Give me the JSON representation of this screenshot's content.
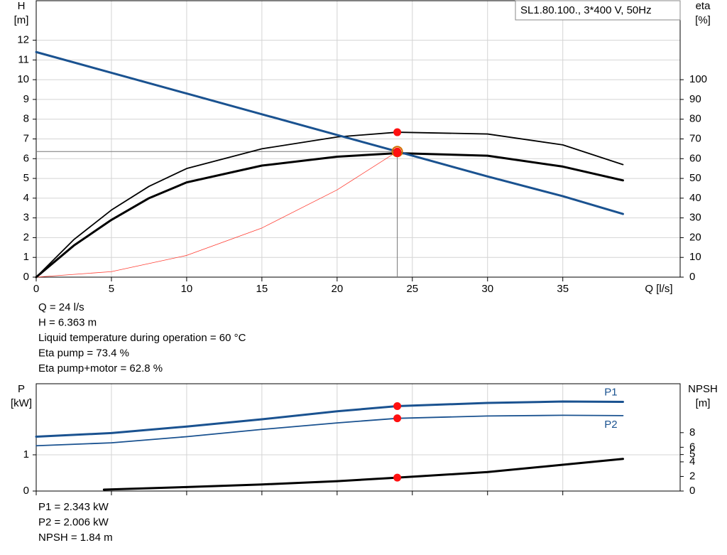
{
  "chart_data": [
    {
      "type": "line",
      "title": "SL1.80.100., 3*400 V, 50Hz",
      "xlabel": "Q [l/s]",
      "ylabel": "H",
      "yunit": "[m]",
      "y2label": "eta",
      "y2unit": "[%]",
      "xlim": [
        0,
        42.8
      ],
      "xticks": [
        0,
        5,
        10,
        15,
        20,
        25,
        30,
        35
      ],
      "ylim": [
        0,
        14
      ],
      "yticks": [
        0,
        1,
        2,
        3,
        4,
        5,
        6,
        7,
        8,
        9,
        10,
        11,
        12
      ],
      "y2lim": [
        0,
        140
      ],
      "y2ticks": [
        0,
        10,
        20,
        30,
        40,
        50,
        60,
        70,
        80,
        90,
        100
      ],
      "grid": true,
      "series": [
        {
          "color": "#ff3b30",
          "width": 0.8,
          "axis": "y",
          "x": [
            0,
            5,
            10,
            15,
            20,
            24
          ],
          "values": [
            0,
            0.28,
            1.1,
            2.49,
            4.42,
            6.363
          ]
        },
        {
          "color": "#000000",
          "width": 1.8,
          "axis": "y2",
          "x": [
            0,
            2.5,
            5,
            7.5,
            10,
            15,
            20,
            24,
            30,
            35,
            39
          ],
          "values": [
            0,
            19,
            34,
            46,
            55,
            65,
            71,
            73.4,
            72.5,
            67,
            57
          ]
        },
        {
          "color": "#000000",
          "width": 3,
          "axis": "y2",
          "x": [
            0,
            2.5,
            5,
            7.5,
            10,
            15,
            20,
            24,
            30,
            35,
            39
          ],
          "values": [
            0,
            16,
            29,
            40,
            48,
            56.5,
            61,
            62.8,
            61.5,
            56,
            49
          ]
        },
        {
          "color": "#1a5290",
          "width": 3,
          "axis": "y",
          "x": [
            0,
            5,
            10,
            15,
            20,
            24,
            30,
            35,
            39
          ],
          "values": [
            11.4,
            10.35,
            9.3,
            8.25,
            7.2,
            6.363,
            5.1,
            4.1,
            3.2
          ]
        }
      ],
      "markers": [
        {
          "x": 24,
          "y": 73.4,
          "axis": "y2",
          "color": "#ff1010"
        },
        {
          "x": 24,
          "y": 6.363,
          "axis": "y",
          "color": "#ff1010",
          "ring": "#d07000",
          "guide": true
        },
        {
          "x": 24,
          "y": 62.8,
          "axis": "y2",
          "color": "#ff1010"
        }
      ],
      "readout": [
        "Q = 24 l/s",
        "H = 6.363 m",
        "Liquid temperature during operation = 60 °C",
        "Eta pump = 73.4 %",
        "Eta pump+motor = 62.8 %"
      ]
    },
    {
      "type": "line",
      "ylabel": "P",
      "yunit": "[kW]",
      "y2label": "NPSH",
      "y2unit": "[m]",
      "xlim": [
        0,
        42.8
      ],
      "xticks": [
        0,
        5,
        10,
        15,
        20,
        25,
        30,
        35
      ],
      "ylim": [
        0,
        2.96
      ],
      "yticks": [
        0,
        1
      ],
      "y2lim": [
        0,
        14.7
      ],
      "y2ticks": [
        0,
        2,
        4,
        5,
        6,
        8
      ],
      "grid": true,
      "series": [
        {
          "name": "P1",
          "color": "#1a5290",
          "width": 3,
          "axis": "y",
          "x": [
            0,
            5,
            10,
            15,
            20,
            24,
            30,
            35,
            39
          ],
          "values": [
            1.5,
            1.6,
            1.78,
            1.98,
            2.2,
            2.343,
            2.43,
            2.47,
            2.46
          ]
        },
        {
          "name": "P2",
          "color": "#1a5290",
          "width": 1.8,
          "axis": "y",
          "x": [
            0,
            5,
            10,
            15,
            20,
            24,
            30,
            35,
            39
          ],
          "values": [
            1.25,
            1.33,
            1.5,
            1.7,
            1.88,
            2.006,
            2.07,
            2.09,
            2.08
          ]
        },
        {
          "color": "#000000",
          "width": 3,
          "axis": "y2",
          "x": [
            4.5,
            10,
            15,
            20,
            24,
            30,
            35,
            39
          ],
          "values": [
            0.2,
            0.55,
            0.9,
            1.35,
            1.84,
            2.6,
            3.6,
            4.4
          ]
        }
      ],
      "markers": [
        {
          "x": 24,
          "y": 2.343,
          "axis": "y",
          "color": "#ff1010"
        },
        {
          "x": 24,
          "y": 2.006,
          "axis": "y",
          "color": "#ff1010"
        },
        {
          "x": 24,
          "y": 1.84,
          "axis": "y2",
          "color": "#ff1010"
        }
      ],
      "readout": [
        "P1 = 2.343 kW",
        "P2 = 2.006 kW",
        "NPSH = 1.84 m"
      ]
    }
  ]
}
